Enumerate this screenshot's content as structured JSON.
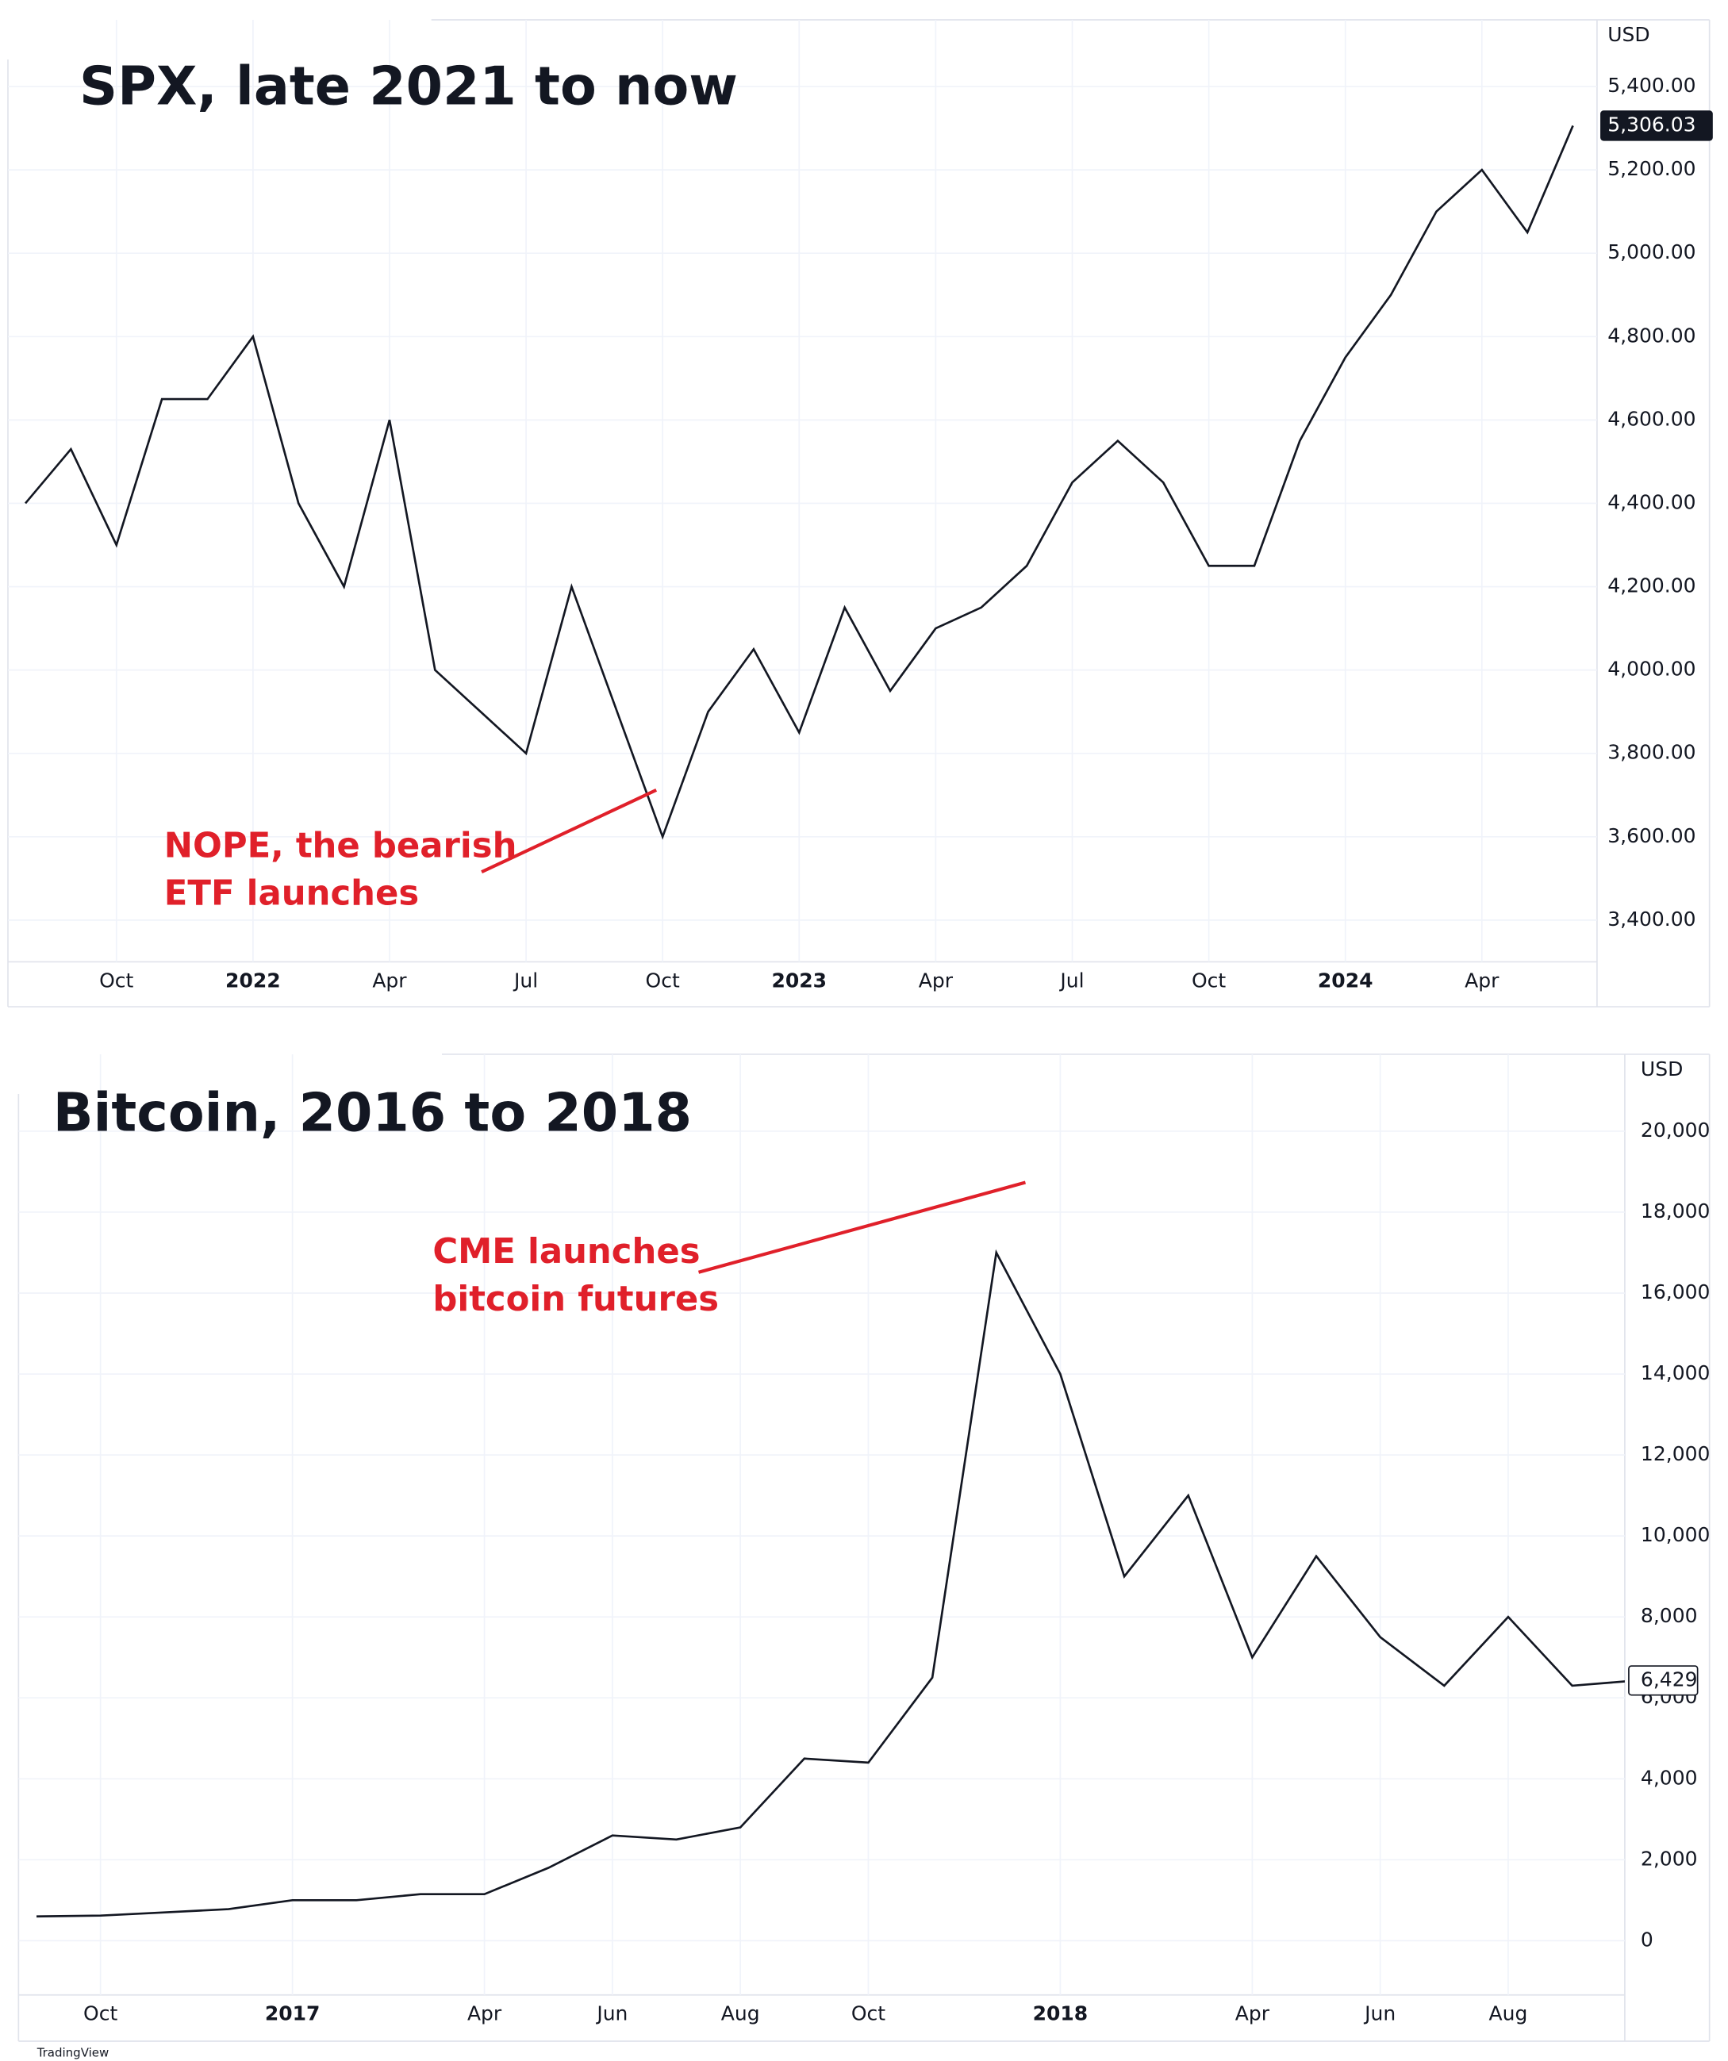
{
  "chart_data": [
    {
      "type": "line",
      "title": "SPX, late 2021 to now",
      "y_unit": "USD",
      "categories": [
        null,
        null,
        "Oct",
        null,
        null,
        "2022",
        null,
        null,
        "Apr",
        null,
        null,
        "Jul",
        null,
        null,
        "Oct",
        null,
        null,
        "2023",
        null,
        null,
        "Apr",
        null,
        null,
        "Jul",
        null,
        null,
        "Oct",
        null,
        null,
        "2024",
        null,
        null,
        "Apr",
        null,
        null
      ],
      "values": [
        4400,
        4530,
        4300,
        4650,
        4650,
        4800,
        4400,
        4200,
        4600,
        4000,
        3900,
        3800,
        4200,
        3900,
        3600,
        3900,
        4050,
        3850,
        4150,
        3950,
        4100,
        4150,
        4250,
        4450,
        4550,
        4450,
        4250,
        4250,
        4550,
        4750,
        4900,
        5100,
        5200,
        5050,
        5306.03
      ],
      "value_labels": [
        null,
        null,
        null,
        null,
        null,
        null,
        null,
        null,
        null,
        null,
        null,
        null,
        null,
        null,
        null,
        null,
        null,
        null,
        null,
        null,
        null,
        null,
        null,
        null,
        null,
        null,
        null,
        null,
        null,
        null,
        null,
        null,
        null,
        null,
        "5,306.03"
      ],
      "color": "#131722",
      "ylim": [
        3300,
        5560
      ],
      "yticks": [
        {
          "value": 3400,
          "label": "3,400.00"
        },
        {
          "value": 3600,
          "label": "3,600.00"
        },
        {
          "value": 3800,
          "label": "3,800.00"
        },
        {
          "value": 4000,
          "label": "4,000.00"
        },
        {
          "value": 4200,
          "label": "4,200.00"
        },
        {
          "value": 4400,
          "label": "4,400.00"
        },
        {
          "value": 4600,
          "label": "4,600.00"
        },
        {
          "value": 4800,
          "label": "4,800.00"
        },
        {
          "value": 5000,
          "label": "5,000.00"
        },
        {
          "value": 5200,
          "label": "5,200.00"
        },
        {
          "value": 5400,
          "label": "5,400.00"
        }
      ],
      "grid": true,
      "annotation": {
        "text": [
          "NOPE, the bearish",
          "ETF launches"
        ],
        "color": "#e0202a"
      }
    },
    {
      "type": "line",
      "title": "Bitcoin, 2016 to 2018",
      "y_unit": "USD",
      "categories": [
        null,
        "Oct",
        null,
        null,
        "2017",
        null,
        null,
        "Apr",
        null,
        "Jun",
        null,
        "Aug",
        null,
        "Oct",
        null,
        null,
        "2018",
        null,
        null,
        "Apr",
        null,
        "Jun",
        null,
        "Aug",
        null,
        null
      ],
      "values": [
        600,
        620,
        700,
        780,
        1000,
        1000,
        1150,
        1150,
        1800,
        2600,
        2500,
        2800,
        4500,
        4400,
        6500,
        17000,
        14000,
        9000,
        11000,
        7000,
        9500,
        7500,
        6300,
        8000,
        6300,
        6429
      ],
      "value_labels": [
        null,
        null,
        null,
        null,
        null,
        null,
        null,
        null,
        null,
        null,
        null,
        null,
        null,
        null,
        null,
        null,
        null,
        null,
        null,
        null,
        null,
        null,
        null,
        null,
        null,
        "6,429"
      ],
      "color": "#131722",
      "ylim": [
        -1340,
        21900
      ],
      "yticks": [
        0,
        {
          "value": 2000,
          "label": "2,000"
        },
        {
          "value": 4000,
          "label": "4,000"
        },
        {
          "value": 6000,
          "label": "6,000"
        },
        {
          "value": 8000,
          "label": "8,000"
        },
        {
          "value": 10000,
          "label": "10,000"
        },
        {
          "value": 12000,
          "label": "12,000"
        },
        {
          "value": 14000,
          "label": "14,000"
        },
        {
          "value": 16000,
          "label": "16,000"
        },
        {
          "value": 18000,
          "label": "18,000"
        },
        {
          "value": 20000,
          "label": "20,000"
        }
      ],
      "grid": true,
      "annotation": {
        "text": [
          "CME launches",
          "bitcoin futures"
        ],
        "color": "#e0202a"
      }
    }
  ],
  "attribution": "TradingView"
}
